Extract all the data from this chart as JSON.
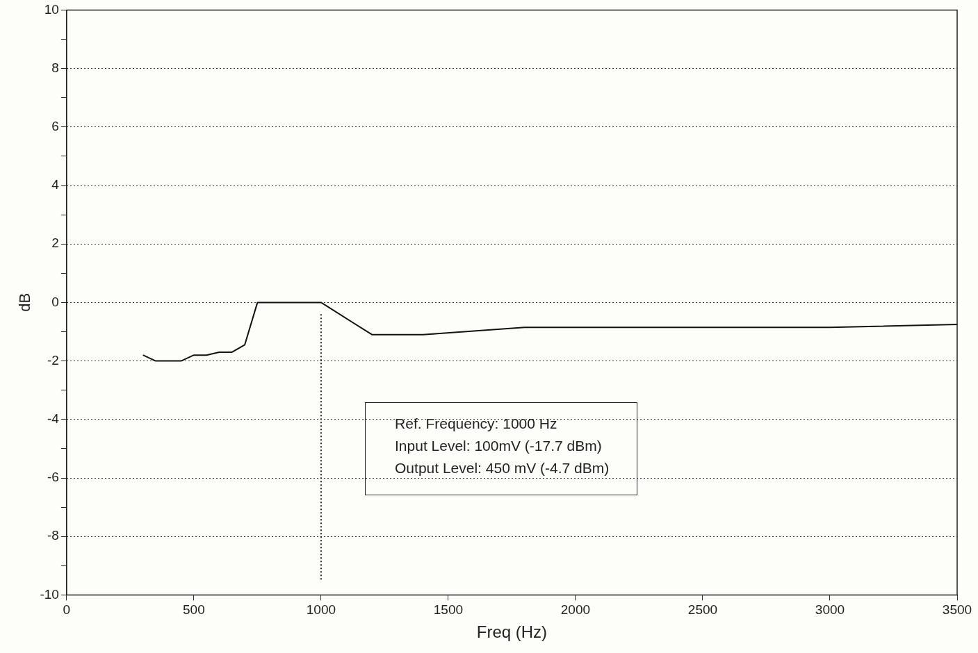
{
  "chart_data": {
    "type": "line",
    "xlabel": "Freq (Hz)",
    "ylabel": "dB",
    "x": [
      300,
      350,
      450,
      500,
      550,
      600,
      650,
      700,
      750,
      1000,
      1200,
      1400,
      1800,
      3000,
      3500
    ],
    "series": [
      {
        "color": "#111111",
        "values": [
          -1.8,
          -2.0,
          -2.0,
          -1.8,
          -1.8,
          -1.7,
          -1.7,
          -1.45,
          0,
          0,
          -1.1,
          -1.1,
          -0.85,
          -0.85,
          -0.75
        ]
      }
    ],
    "xlim": [
      0,
      3500
    ],
    "xticks": [
      0,
      500,
      1000,
      1500,
      2000,
      2500,
      3000,
      3500
    ],
    "ylim": [
      -10,
      10
    ],
    "yticks": [
      -10,
      {
        "value": -9,
        "label": null
      },
      -8,
      {
        "value": -7,
        "label": null
      },
      -6,
      {
        "value": -5,
        "label": null
      },
      -4,
      {
        "value": -3,
        "label": null
      },
      -2,
      {
        "value": -1,
        "label": null
      },
      0,
      {
        "value": 1,
        "label": null
      },
      2,
      {
        "value": 3,
        "label": null
      },
      4,
      {
        "value": 5,
        "label": null
      },
      6,
      {
        "value": 7,
        "label": null
      },
      8,
      {
        "value": 9,
        "label": null
      },
      10
    ],
    "grid": "y",
    "legend": false,
    "marker": "none",
    "line_style": "solid",
    "ref_lines": [
      {
        "axis": "x",
        "value": 1000,
        "line_style": "dotted",
        "color": "#222222"
      }
    ],
    "annotations": [
      "Ref.  Frequency:  1000 Hz",
      "Input  Level:  100mV  (-17.7 dBm)",
      "Output  Level:  450 mV  (-4.7 dBm)"
    ]
  }
}
